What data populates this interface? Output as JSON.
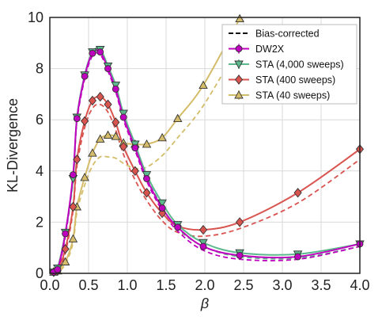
{
  "chart_data": {
    "type": "line",
    "xlabel": "β",
    "ylabel": "KL-Divergence",
    "xlim": [
      0.0,
      4.0
    ],
    "ylim": [
      0,
      10
    ],
    "xticks": [
      "0.0",
      "0.5",
      "1.0",
      "1.5",
      "2.0",
      "2.5",
      "3.0",
      "3.5",
      "4.0"
    ],
    "yticks": [
      "0",
      "2",
      "4",
      "6",
      "8",
      "10"
    ],
    "grid": true,
    "legend_position": "top-right",
    "legend_dashed_label": "Bias-corrected",
    "series": [
      {
        "name": "DW2X",
        "color": "#bf00bf",
        "marker": "circle",
        "x": [
          0.05,
          0.1,
          0.2,
          0.3,
          0.35,
          0.45,
          0.55,
          0.65,
          0.75,
          0.85,
          0.95,
          1.1,
          1.25,
          1.45,
          1.65,
          1.98,
          2.45,
          3.2,
          4.0
        ],
        "y": [
          0.05,
          0.15,
          1.55,
          3.85,
          6.05,
          7.7,
          8.6,
          8.65,
          8.0,
          7.2,
          6.1,
          4.9,
          3.7,
          2.55,
          1.8,
          1.05,
          0.7,
          0.65,
          1.15
        ],
        "corrected": [
          0.0,
          0.05,
          1.45,
          3.75,
          5.95,
          7.6,
          8.5,
          8.55,
          7.9,
          7.1,
          6.0,
          4.8,
          3.6,
          2.45,
          1.65,
          0.9,
          0.55,
          0.55,
          1.05
        ]
      },
      {
        "name": "STA (4,000 sweeps)",
        "color": "#5eb88e",
        "marker": "triangle-down",
        "x": [
          0.05,
          0.1,
          0.2,
          0.3,
          0.35,
          0.45,
          0.55,
          0.65,
          0.75,
          0.85,
          0.95,
          1.1,
          1.25,
          1.45,
          1.65,
          1.98,
          2.45,
          3.2,
          4.0
        ],
        "y": [
          0.05,
          0.2,
          1.6,
          3.7,
          6.1,
          7.75,
          8.65,
          8.75,
          8.1,
          7.35,
          6.25,
          5.05,
          3.85,
          2.75,
          1.9,
          1.2,
          0.8,
          0.75,
          1.15
        ],
        "corrected": [
          0.0,
          0.1,
          1.5,
          3.6,
          6.0,
          7.65,
          8.55,
          8.65,
          8.0,
          7.25,
          6.15,
          4.95,
          3.75,
          2.6,
          1.75,
          1.05,
          0.65,
          0.6,
          1.05
        ]
      },
      {
        "name": "STA (400 sweeps)",
        "color": "#d9534f",
        "marker": "diamond",
        "x": [
          0.05,
          0.1,
          0.2,
          0.3,
          0.35,
          0.45,
          0.55,
          0.65,
          0.75,
          0.85,
          0.95,
          1.1,
          1.25,
          1.45,
          1.65,
          1.98,
          2.45,
          3.2,
          4.0
        ],
        "y": [
          0.05,
          0.1,
          0.95,
          2.6,
          4.45,
          5.95,
          6.75,
          6.9,
          6.6,
          5.9,
          4.95,
          4.0,
          3.15,
          2.35,
          1.85,
          1.7,
          2.0,
          3.15,
          4.85
        ],
        "corrected": [
          0.0,
          0.05,
          0.8,
          2.45,
          4.2,
          5.7,
          6.45,
          6.6,
          6.3,
          5.6,
          4.65,
          3.65,
          2.85,
          2.05,
          1.6,
          1.45,
          1.75,
          2.75,
          4.45
        ]
      },
      {
        "name": "STA (40 sweeps)",
        "color": "#d4bc6a",
        "marker": "triangle-up",
        "x": [
          0.05,
          0.1,
          0.2,
          0.3,
          0.35,
          0.45,
          0.55,
          0.65,
          0.75,
          0.85,
          0.95,
          1.1,
          1.25,
          1.45,
          1.65,
          1.98,
          2.45
        ],
        "y": [
          0.05,
          0.1,
          0.45,
          1.35,
          2.6,
          3.75,
          4.7,
          5.25,
          5.4,
          5.35,
          5.1,
          5.05,
          5.05,
          5.3,
          6.05,
          7.35,
          9.95
        ],
        "corrected": [
          0.0,
          0.05,
          0.35,
          1.2,
          2.4,
          3.45,
          4.2,
          4.55,
          4.55,
          4.5,
          4.3,
          4.1,
          4.15,
          4.6,
          5.3,
          6.55,
          8.95
        ]
      }
    ]
  }
}
